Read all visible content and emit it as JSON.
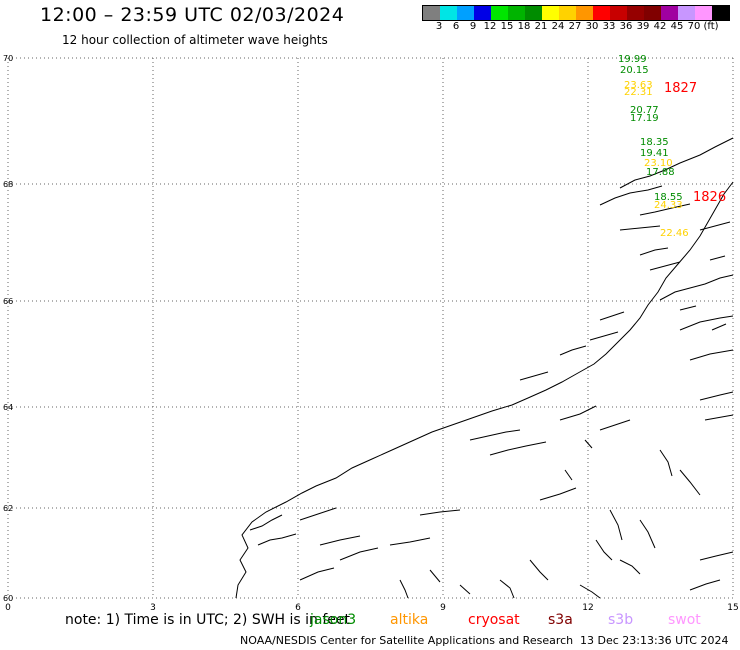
{
  "title": "12:00 – 23:59 UTC 02/03/2024",
  "subtitle": "12 hour collection of altimeter wave heights",
  "colorbar": {
    "colors": [
      "#7f7f7f",
      "#00e5e5",
      "#00a0ff",
      "#0000e6",
      "#00e600",
      "#00b400",
      "#008c00",
      "#ffff00",
      "#ffd200",
      "#ff9600",
      "#ff0000",
      "#c80000",
      "#960000",
      "#800000",
      "#a000a0",
      "#c896ff",
      "#ff96ff",
      "#000000"
    ],
    "labels": [
      "3",
      "6",
      "9",
      "12",
      "15",
      "18",
      "21",
      "24",
      "27",
      "30",
      "33",
      "36",
      "39",
      "42",
      "45",
      "70",
      "(ft)"
    ]
  },
  "axes": {
    "x_ticks": [
      "0",
      "3",
      "6",
      "9",
      "12",
      "15"
    ],
    "y_ticks": [
      "60",
      "62",
      "64",
      "66",
      "68",
      "70"
    ],
    "x_range": [
      0,
      15
    ],
    "y_range": [
      60,
      70
    ]
  },
  "observations": [
    {
      "value": "19.99",
      "color": "#008c00"
    },
    {
      "value": "20.15",
      "color": "#008c00"
    },
    {
      "value": "23.63",
      "color": "#ffd200"
    },
    {
      "value": "22.31",
      "color": "#ffd200"
    },
    {
      "value": "1827",
      "color": "#ff0000"
    },
    {
      "value": "20.77",
      "color": "#008c00"
    },
    {
      "value": "17.19",
      "color": "#008c00"
    },
    {
      "value": "18.35",
      "color": "#008c00"
    },
    {
      "value": "19.41",
      "color": "#008c00"
    },
    {
      "value": "23.10",
      "color": "#ffd200"
    },
    {
      "value": "17.88",
      "color": "#008c00"
    },
    {
      "value": "18.55",
      "color": "#008c00"
    },
    {
      "value": "24.33",
      "color": "#ffd200"
    },
    {
      "value": "1826",
      "color": "#ff0000"
    },
    {
      "value": "22.46",
      "color": "#ffd200"
    }
  ],
  "note": "note:  1) Time is in UTC; 2) SWH is in feet",
  "satellites": [
    {
      "name": "jason3",
      "color": "#008c00"
    },
    {
      "name": "altika",
      "color": "#ff9600"
    },
    {
      "name": "cryosat",
      "color": "#ff0000"
    },
    {
      "name": "s3a",
      "color": "#800000"
    },
    {
      "name": "s3b",
      "color": "#c896ff"
    },
    {
      "name": "swot",
      "color": "#ff96ff"
    }
  ],
  "credit": "NOAA/NESDIS Center for Satellite Applications and Research",
  "credit_date": "13 Dec 23:13:36 UTC 2024"
}
